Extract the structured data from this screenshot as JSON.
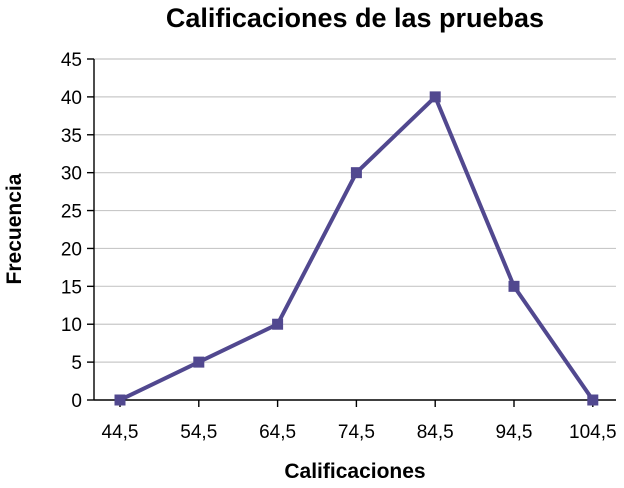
{
  "chart_data": {
    "type": "line",
    "title": "Calificaciones de las pruebas",
    "xlabel": "Calificaciones",
    "ylabel": "Frecuencia",
    "categories": [
      "44,5",
      "54,5",
      "64,5",
      "74,5",
      "84,5",
      "94,5",
      "104,5"
    ],
    "values": [
      0,
      5,
      10,
      30,
      40,
      15,
      0
    ],
    "ylim": [
      0,
      45
    ],
    "yticks": [
      0,
      5,
      10,
      15,
      20,
      25,
      30,
      35,
      40,
      45
    ],
    "grid": true,
    "line_color": "#51488f",
    "marker": "square"
  }
}
